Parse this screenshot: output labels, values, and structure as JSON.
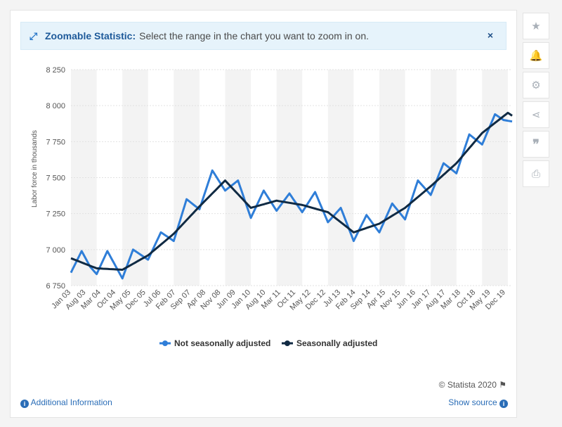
{
  "banner": {
    "title": "Zoomable Statistic:",
    "text": "Select the range in the chart you want to zoom in on.",
    "close": "×"
  },
  "footer": {
    "additional_info": "Additional Information",
    "show_source": "Show source",
    "copyright": "© Statista 2020"
  },
  "sidebar_icons": [
    "star-icon",
    "bell-icon",
    "gear-icon",
    "share-icon",
    "quote-icon",
    "print-icon"
  ],
  "colors": {
    "not_seasonally_adjusted": "#2f7ed8",
    "seasonally_adjusted": "#102a43",
    "accent": "#2a6db7"
  },
  "chart_data": {
    "type": "line",
    "ylabel": "Labor force in thousands",
    "xlabel": "",
    "ylim": [
      6750,
      8250
    ],
    "yticks": [
      6750,
      7000,
      7250,
      7500,
      7750,
      8000,
      8250
    ],
    "ytick_labels": [
      "6 750",
      "7 000",
      "7 250",
      "7 500",
      "7 750",
      "8 000",
      "8 250"
    ],
    "x_start": "Jan 03",
    "x_end": "Mar 20",
    "x_tick_labels": [
      "Jan 03",
      "Aug 03",
      "Mar 04",
      "Oct 04",
      "May 05",
      "Dec 05",
      "Jul 06",
      "Feb 07",
      "Sep 07",
      "Apr 08",
      "Nov 08",
      "Jun 09",
      "Jan 10",
      "Aug 10",
      "Mar 11",
      "Oct 11",
      "May 12",
      "Dec 12",
      "Jul 13",
      "Feb 14",
      "Sep 14",
      "Apr 15",
      "Nov 15",
      "Jun 16",
      "Jan 17",
      "Aug 17",
      "Mar 18",
      "Oct 18",
      "May 19",
      "Dec 19"
    ],
    "legend_position": "bottom",
    "grid": "alternating vertical bands",
    "series": [
      {
        "name": "Not seasonally adjusted",
        "anchors": [
          [
            "Jan 03",
            6840
          ],
          [
            "Jun 03",
            6990
          ],
          [
            "Oct 03",
            6880
          ],
          [
            "Jan 04",
            6830
          ],
          [
            "Jun 04",
            6990
          ],
          [
            "Jan 05",
            6800
          ],
          [
            "Jun 05",
            7000
          ],
          [
            "Jan 06",
            6930
          ],
          [
            "Jul 06",
            7120
          ],
          [
            "Jan 07",
            7060
          ],
          [
            "Jul 07",
            7350
          ],
          [
            "Jan 08",
            7280
          ],
          [
            "Jul 08",
            7550
          ],
          [
            "Jan 09",
            7410
          ],
          [
            "Jul 09",
            7480
          ],
          [
            "Jan 10",
            7220
          ],
          [
            "Jul 10",
            7410
          ],
          [
            "Jan 11",
            7270
          ],
          [
            "Jul 11",
            7390
          ],
          [
            "Jan 12",
            7260
          ],
          [
            "Jul 12",
            7400
          ],
          [
            "Jan 13",
            7190
          ],
          [
            "Jul 13",
            7290
          ],
          [
            "Jan 14",
            7060
          ],
          [
            "Jul 14",
            7240
          ],
          [
            "Jan 15",
            7120
          ],
          [
            "Jul 15",
            7320
          ],
          [
            "Jan 16",
            7210
          ],
          [
            "Jul 16",
            7480
          ],
          [
            "Jan 17",
            7380
          ],
          [
            "Jul 17",
            7600
          ],
          [
            "Jan 18",
            7530
          ],
          [
            "Jul 18",
            7800
          ],
          [
            "Jan 19",
            7730
          ],
          [
            "Jul 19",
            7940
          ],
          [
            "Nov 19",
            7900
          ],
          [
            "Mar 20",
            7890
          ]
        ]
      },
      {
        "name": "Seasonally adjusted",
        "anchors": [
          [
            "Jan 03",
            6940
          ],
          [
            "Jan 04",
            6870
          ],
          [
            "Jan 05",
            6860
          ],
          [
            "Jan 06",
            6960
          ],
          [
            "Jan 07",
            7110
          ],
          [
            "Jan 08",
            7300
          ],
          [
            "Jan 09",
            7480
          ],
          [
            "Jan 10",
            7290
          ],
          [
            "Jan 11",
            7340
          ],
          [
            "Jan 12",
            7310
          ],
          [
            "Jan 13",
            7260
          ],
          [
            "Jan 14",
            7120
          ],
          [
            "Jan 15",
            7180
          ],
          [
            "Jan 16",
            7290
          ],
          [
            "Jan 17",
            7440
          ],
          [
            "Jan 18",
            7600
          ],
          [
            "Jan 19",
            7810
          ],
          [
            "Jan 20",
            7950
          ],
          [
            "Mar 20",
            7930
          ]
        ]
      }
    ]
  }
}
